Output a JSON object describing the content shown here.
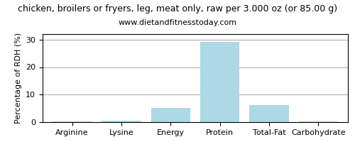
{
  "chart_data": {
    "type": "bar",
    "title": "chicken, broilers or fryers, leg, meat only, raw per 3.000 oz (or 85.00 g)",
    "subtitle": "www.dietandfitnesstoday.com",
    "categories": [
      "Arginine",
      "Lysine",
      "Energy",
      "Protein",
      "Total-Fat",
      "Carbohydrate"
    ],
    "values": [
      0.3,
      0.4,
      5.1,
      29.2,
      6.1,
      0.3
    ],
    "color": "#add8e6",
    "y_label": "Percentage of RDH (%)",
    "ylim": [
      0,
      32
    ],
    "yticks": [
      0,
      10,
      20,
      30
    ],
    "grid": true
  }
}
